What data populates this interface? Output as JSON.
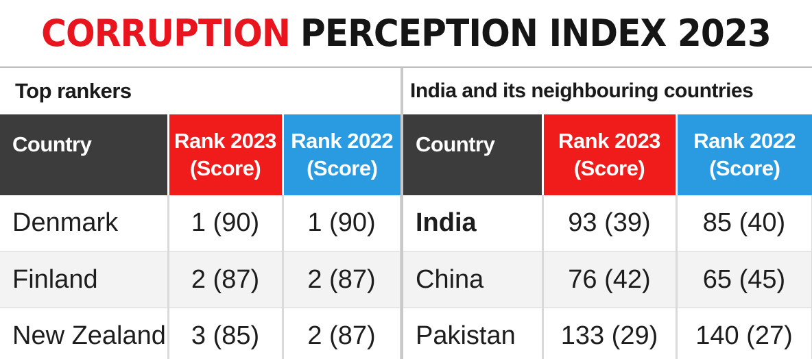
{
  "title": {
    "part_red": "CORRUPTION",
    "part_dark": "PERCEPTION INDEX 2023"
  },
  "headers": {
    "country": "Country",
    "rank2023_line1": "Rank 2023",
    "rank2023_line2": "(Score)",
    "rank2022_line1": "Rank 2022",
    "rank2022_line2": "(Score)"
  },
  "colors": {
    "title_red": "#e8141e",
    "header_dark": "#3c3c3c",
    "header_red": "#f01c1c",
    "header_blue": "#2a9be0"
  },
  "chart_data": [
    {
      "type": "table",
      "title": "Top rankers",
      "columns": [
        "Country",
        "Rank 2023 (Score)",
        "Rank 2022 (Score)"
      ],
      "rows": [
        {
          "country": "Denmark",
          "rank2023": "1 (90)",
          "rank2022": "1 (90)"
        },
        {
          "country": "Finland",
          "rank2023": "2 (87)",
          "rank2022": "2 (87)"
        },
        {
          "country": "New Zealand",
          "rank2023": "3 (85)",
          "rank2022": "2 (87)"
        }
      ]
    },
    {
      "type": "table",
      "title": "India and its neighbouring countries",
      "columns": [
        "Country",
        "Rank 2023 (Score)",
        "Rank 2022 (Score)"
      ],
      "rows": [
        {
          "country": "India",
          "rank2023": "93 (39)",
          "rank2022": "85 (40)"
        },
        {
          "country": "China",
          "rank2023": "76 (42)",
          "rank2022": "65 (45)"
        },
        {
          "country": "Pakistan",
          "rank2023": "133 (29)",
          "rank2022": "140 (27)"
        }
      ]
    }
  ]
}
